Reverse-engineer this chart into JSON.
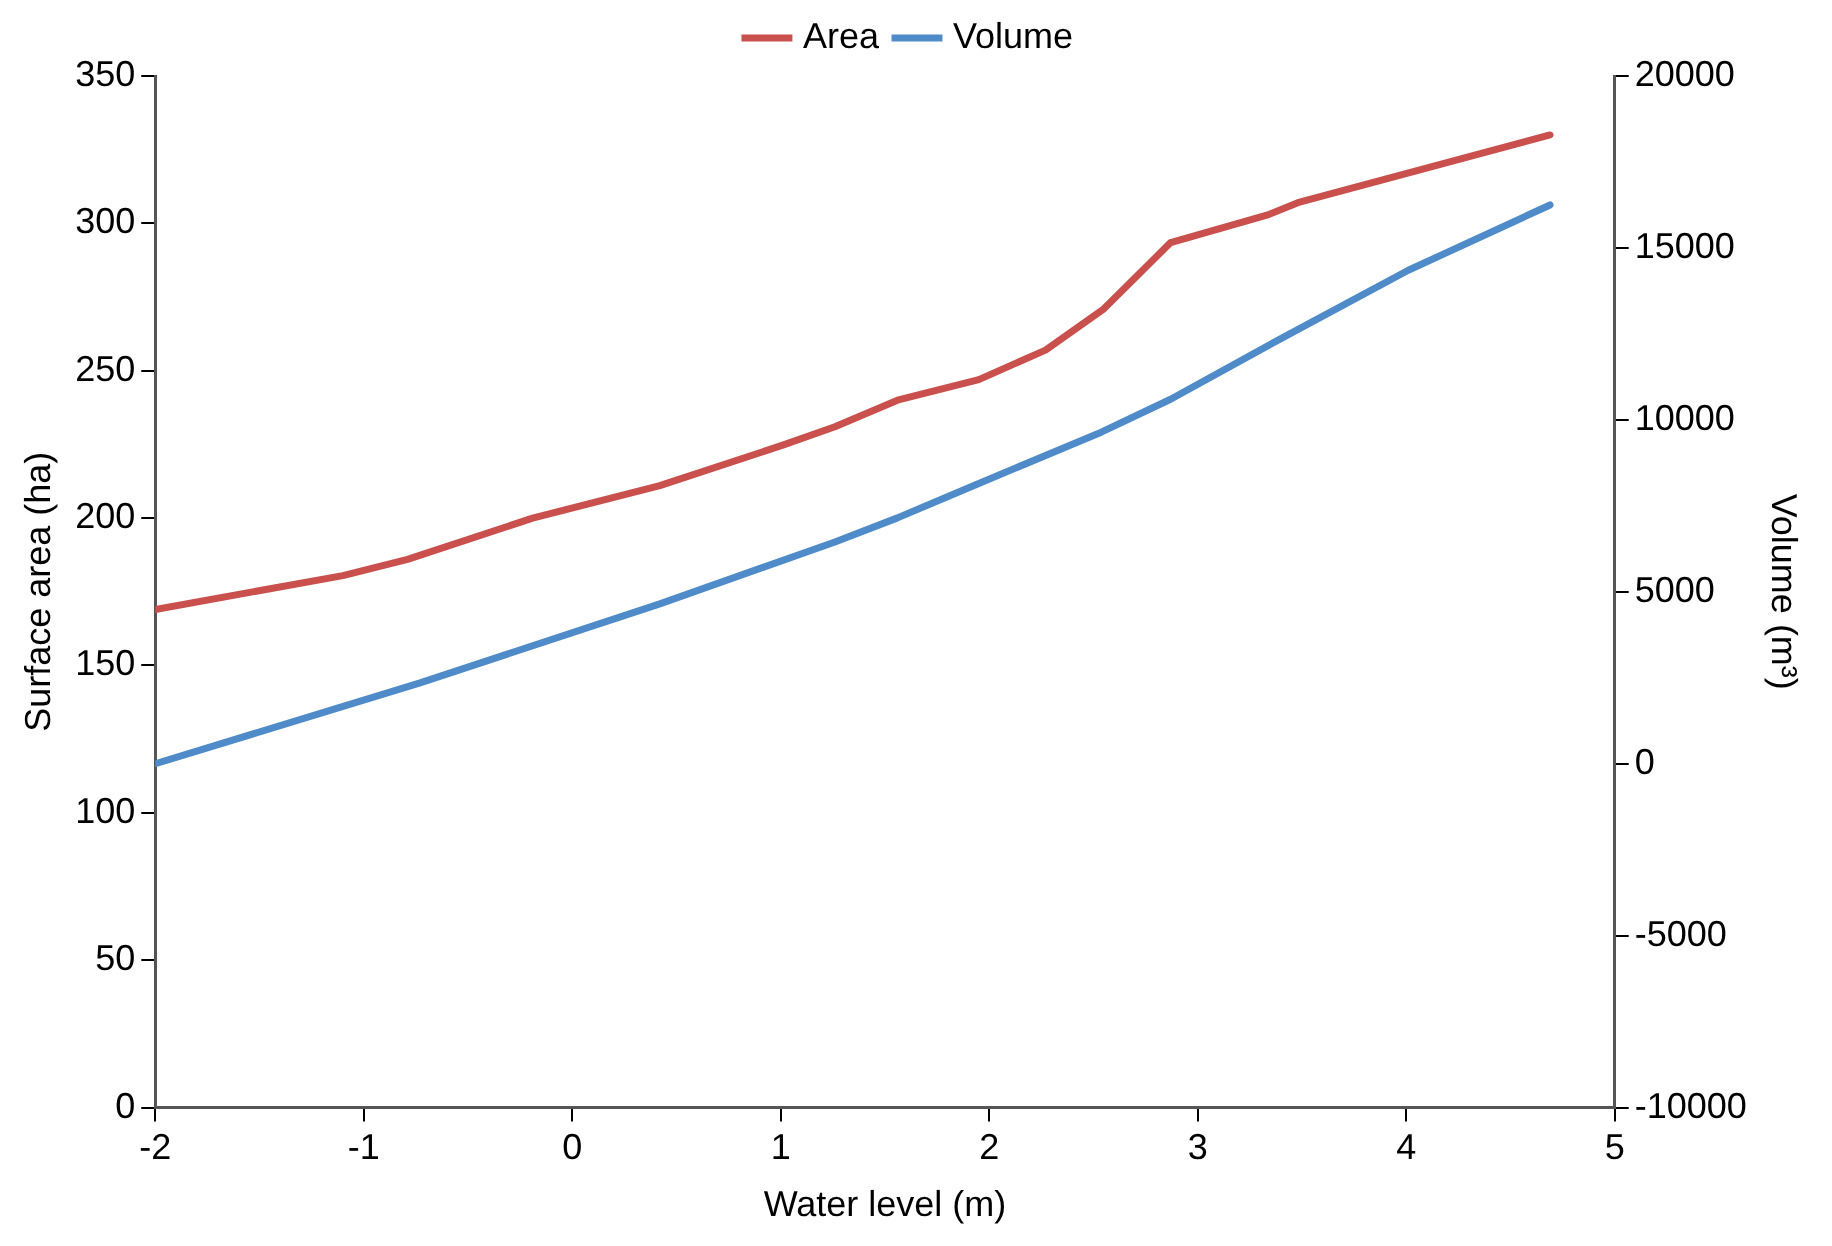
{
  "chart_data": {
    "type": "line",
    "xlabel": "Water level (m)",
    "ylabel": "Surface area (ha)",
    "y2label": "Volume (m³)",
    "xlim": [
      -2,
      5
    ],
    "xticks": [
      -2,
      -1,
      0,
      1,
      2,
      3,
      4,
      5
    ],
    "ylim": [
      0,
      350
    ],
    "yticks": [
      0,
      50,
      100,
      150,
      200,
      250,
      300,
      350
    ],
    "y2lim": [
      -10000,
      20000
    ],
    "y2ticks": [
      -10000,
      -5000,
      0,
      5000,
      10000,
      15000,
      20000
    ],
    "grid": false,
    "legend": "top",
    "marker": "none",
    "series": [
      {
        "name": "Area",
        "color": "#c9504c",
        "x": [
          -2,
          -1.1,
          -0.79,
          -0.19,
          0.42,
          1.02,
          1.26,
          1.56,
          1.95,
          2.27,
          2.55,
          2.87,
          3.34,
          3.48,
          4.69
        ],
        "values": [
          169,
          180.5,
          186,
          200,
          211,
          225,
          231,
          240,
          247,
          257,
          271,
          293.5,
          303,
          307,
          330
        ]
      },
      {
        "name": "Volume",
        "color": "#4f8ac9",
        "axis": "y2",
        "x": [
          -2,
          -0.73,
          0.42,
          1.26,
          1.56,
          1.93,
          2.54,
          2.87,
          3.41,
          4.01,
          4.69
        ],
        "values": [
          0,
          2350,
          4650,
          6450,
          7150,
          8100,
          9650,
          10600,
          12400,
          14350,
          16250
        ]
      }
    ]
  }
}
